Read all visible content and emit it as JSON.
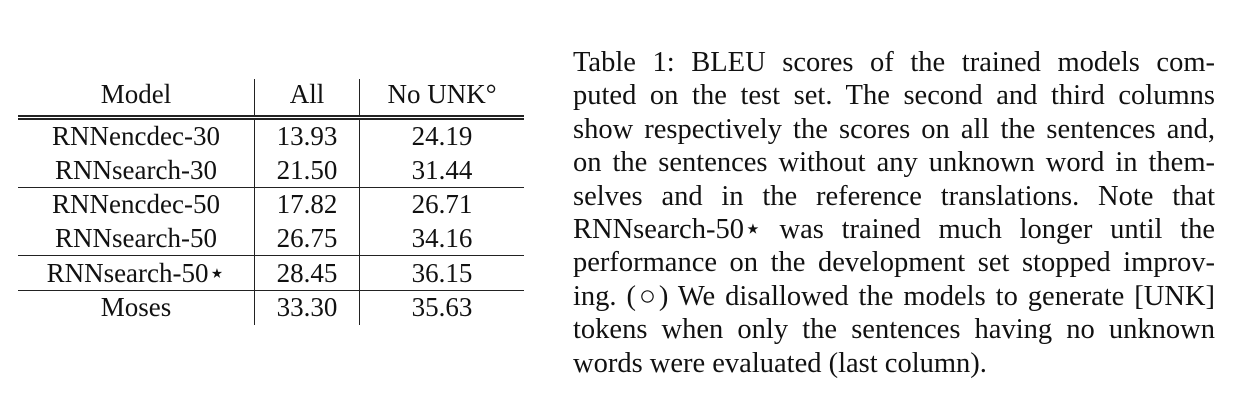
{
  "table": {
    "headers": [
      "Model",
      "All",
      "No UNK°"
    ],
    "rows": [
      {
        "model": "RNNencdec-30",
        "all": "13.93",
        "no_unk": "24.19"
      },
      {
        "model": "RNNsearch-30",
        "all": "21.50",
        "no_unk": "31.44"
      },
      {
        "model": "RNNencdec-50",
        "all": "17.82",
        "no_unk": "26.71"
      },
      {
        "model": "RNNsearch-50",
        "all": "26.75",
        "no_unk": "34.16"
      },
      {
        "model": "RNNsearch-50⋆",
        "all": "28.45",
        "no_unk": "36.15"
      },
      {
        "model": "Moses",
        "all": "33.30",
        "no_unk": "35.63"
      }
    ]
  },
  "caption": {
    "lines": [
      "Table 1: BLEU scores of the trained models com-",
      "puted on the test set. The second and third columns",
      "show respectively the scores on all the sentences and,",
      "on the sentences without any unknown word in them-",
      "selves and in the reference translations. Note that",
      "RNNsearch-50⋆ was trained much longer until the",
      "performance on the development set stopped improv-",
      "ing. (○) We disallowed the models to generate [UNK]",
      "tokens when only the sentences having no unknown",
      "words were evaluated (last column)."
    ]
  }
}
